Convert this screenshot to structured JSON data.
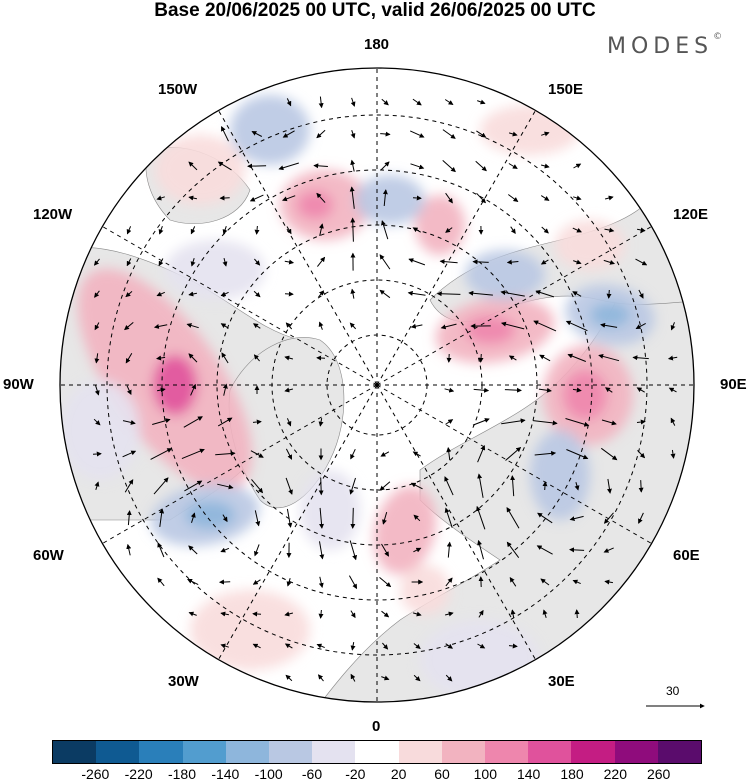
{
  "title": "Base 20/06/2025 00 UTC, valid 26/06/2025 00 UTC",
  "brand": {
    "name": "MODES",
    "mark": "©"
  },
  "longitude_labels": {
    "deg180": "180",
    "deg150w": "150W",
    "deg150e": "150E",
    "deg120w": "120W",
    "deg120e": "120E",
    "deg90w": "90W",
    "deg90e": "90E",
    "deg60w": "60W",
    "deg60e": "60E",
    "deg30w": "30W",
    "deg30e": "30E",
    "deg0": "0"
  },
  "vector_reference": {
    "label": "30"
  },
  "colorbar": {
    "colors": [
      "#0b3b63",
      "#0f5a92",
      "#2a7fba",
      "#529dcf",
      "#8eb6dc",
      "#b9c8e3",
      "#e4e2f0",
      "#ffffff",
      "#f8dbdc",
      "#f2b3c0",
      "#ee86ad",
      "#e0529c",
      "#c41d83",
      "#8f0c7c",
      "#5a0c6c"
    ],
    "labels": [
      "-260",
      "-220",
      "-180",
      "-140",
      "-100",
      "-60",
      "-20",
      "20",
      "60",
      "100",
      "140",
      "180",
      "220",
      "260"
    ]
  },
  "palette": {
    "land": "#e7e7e7",
    "ocean": "#ffffff",
    "grid": "#000000",
    "positive_light": "#f8dbdc",
    "positive_mid": "#f2b3c0",
    "positive_strong": "#ee86ad",
    "positive_peak": "#e0529c",
    "negative_light": "#e4e2f0",
    "negative_mid": "#b9c8e3",
    "negative_strong": "#8eb6dc"
  }
}
